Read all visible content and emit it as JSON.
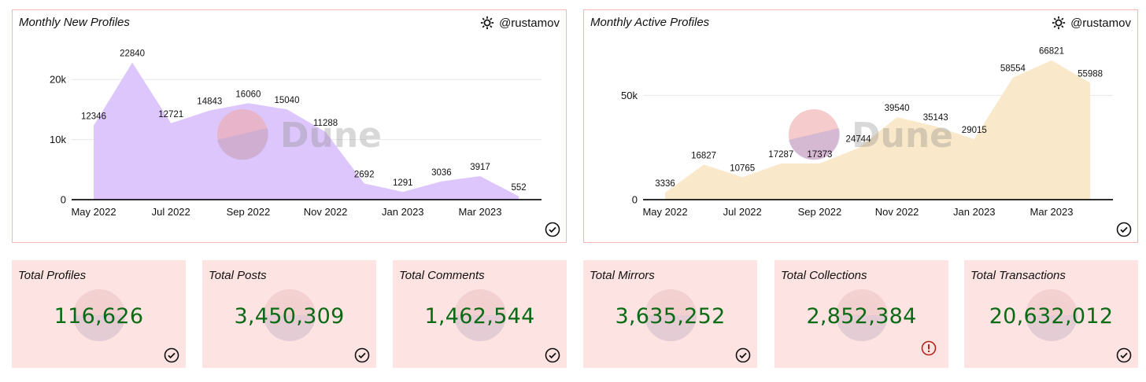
{
  "author": "@rustamov",
  "watermark": "Dune",
  "chart_data": [
    {
      "type": "area",
      "title": "Monthly New Profiles",
      "x": [
        "2022-05",
        "2022-06",
        "2022-07",
        "2022-08",
        "2022-09",
        "2022-10",
        "2022-11",
        "2022-12",
        "2023-01",
        "2023-02",
        "2023-03",
        "2023-04"
      ],
      "values": [
        12346,
        22840,
        12721,
        14843,
        16060,
        15040,
        11288,
        2692,
        1291,
        3036,
        3917,
        552
      ],
      "series": [
        {
          "values": [
            12346,
            22840,
            12721,
            14843,
            16060,
            15040,
            11288,
            2692,
            1291,
            3036,
            3917,
            552
          ],
          "color": "#dcc6fb"
        }
      ],
      "xticks": [
        "May 2022",
        "Jul 2022",
        "Sep 2022",
        "Nov 2022",
        "Jan 2023",
        "Mar 2023"
      ],
      "yticks": [
        "0",
        "10k",
        "20k"
      ],
      "ylim": [
        0,
        25000
      ],
      "grid": true,
      "color": "#dcc6fb"
    },
    {
      "type": "area",
      "title": "Monthly Active Profiles",
      "x": [
        "2022-05",
        "2022-06",
        "2022-07",
        "2022-08",
        "2022-09",
        "2022-10",
        "2022-11",
        "2022-12",
        "2023-01",
        "2023-02",
        "2023-03",
        "2023-04"
      ],
      "values": [
        3336,
        16827,
        10765,
        17287,
        17373,
        24744,
        39540,
        35143,
        29015,
        58554,
        66821,
        55988
      ],
      "series": [
        {
          "values": [
            3336,
            16827,
            10765,
            17287,
            17373,
            24744,
            39540,
            35143,
            29015,
            58554,
            66821,
            55988
          ],
          "color": "#f9e8c9"
        }
      ],
      "xticks": [
        "May 2022",
        "Jul 2022",
        "Sep 2022",
        "Nov 2022",
        "Jan 2023",
        "Mar 2023"
      ],
      "yticks": [
        "0",
        "50k"
      ],
      "ylim": [
        0,
        72000
      ],
      "grid": true,
      "color": "#f9e8c9"
    }
  ],
  "counters": [
    {
      "title": "Total Profiles",
      "value": "116,626",
      "status": "ok"
    },
    {
      "title": "Total Posts",
      "value": "3,450,309",
      "status": "ok"
    },
    {
      "title": "Total Comments",
      "value": "1,462,544",
      "status": "ok"
    },
    {
      "title": "Total Mirrors",
      "value": "3,635,252",
      "status": "ok"
    },
    {
      "title": "Total Collections",
      "value": "2,852,384",
      "status": "error"
    },
    {
      "title": "Total Transactions",
      "value": "20,632,012",
      "status": "ok"
    }
  ],
  "colors": {
    "value_text": "#0b6b15",
    "border": "#f3b6b1",
    "counter_bg": "#fde3e1",
    "error": "#b3261e"
  }
}
